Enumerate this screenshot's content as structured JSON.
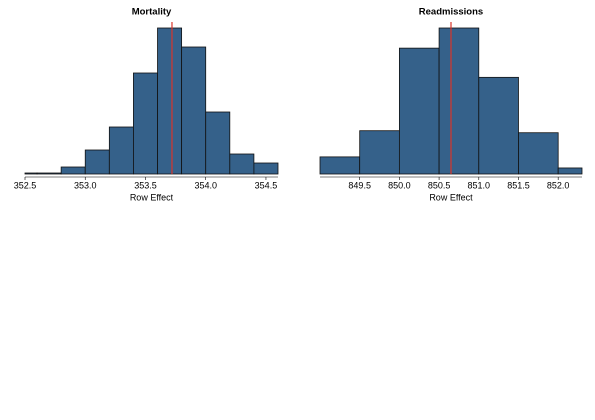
{
  "chart_data": [
    {
      "type": "histogram",
      "title": "Mortality",
      "xlabel": "Row Effect",
      "bins": [
        352.4,
        352.6,
        352.8,
        353.0,
        353.2,
        353.4,
        353.6,
        353.8,
        354.0,
        354.2,
        354.4,
        354.6
      ],
      "values": [
        1,
        1,
        7,
        24,
        47,
        101,
        146,
        127,
        62,
        20,
        11
      ],
      "color": "#35618a",
      "xlim": [
        352.5,
        354.6
      ],
      "ylim": [
        0,
        146
      ],
      "xticks": [
        352.5,
        {
          "value": 353.0,
          "label": "353.0"
        },
        353.5,
        {
          "value": 354.0,
          "label": "354.0"
        },
        354.5
      ],
      "reference_line": {
        "value": 353.72,
        "color": "#d9352b"
      }
    },
    {
      "type": "histogram",
      "title": "Readmissions",
      "xlabel": "Row Effect",
      "bins": [
        849.0,
        849.5,
        850.0,
        850.5,
        851.0,
        851.5,
        852.0,
        852.5
      ],
      "values": [
        17,
        43,
        125,
        145,
        96,
        41,
        6
      ],
      "color": "#35618a",
      "xlim": [
        849.0,
        852.3
      ],
      "ylim": [
        0,
        145
      ],
      "xticks": [
        849.5,
        {
          "value": 850.0,
          "label": "850.0"
        },
        850.5,
        {
          "value": 851.0,
          "label": "851.0"
        },
        851.5,
        {
          "value": 852.0,
          "label": "852.0"
        }
      ],
      "reference_line": {
        "value": 850.65,
        "color": "#d9352b"
      }
    }
  ]
}
